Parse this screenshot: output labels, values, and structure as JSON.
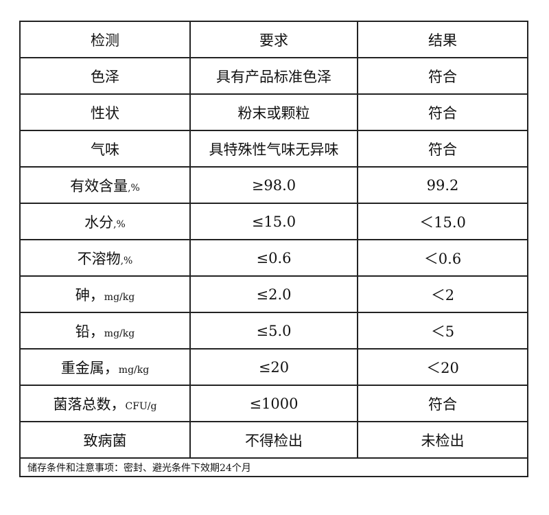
{
  "header": [
    "检测",
    "要求",
    "结果"
  ],
  "rows": [
    {
      "item": "色泽",
      "unit": "",
      "requirement": "具有产品标准色泽",
      "result": "符合"
    },
    {
      "item": "性状",
      "unit": "",
      "requirement": "粉末或颗粒",
      "result": "符合"
    },
    {
      "item": "气味",
      "unit": "",
      "requirement": "具特殊性气味无异味",
      "result": "符合"
    },
    {
      "item": "有效含量",
      "unit": ",%",
      "requirement": "≥98.0",
      "result": "99.2"
    },
    {
      "item": "水分",
      "unit": ",%",
      "requirement": "≤15.0",
      "result": "＜15.0"
    },
    {
      "item": "不溶物",
      "unit": ",%",
      "requirement": "≤0.6",
      "result": "＜0.6"
    },
    {
      "item": "砷，",
      "unit": "mg/kg",
      "requirement": "≤2.0",
      "result": "＜2"
    },
    {
      "item": "铅，",
      "unit": "mg/kg",
      "requirement": "≤5.0",
      "result": "＜5"
    },
    {
      "item": "重金属，",
      "unit": "mg/kg",
      "requirement": "≤20",
      "result": "＜20"
    },
    {
      "item": "菌落总数，",
      "unit": "CFU/g",
      "requirement": "≤1000",
      "result": "符合"
    },
    {
      "item": "致病菌",
      "unit": "",
      "requirement": "不得检出",
      "result": "未检出"
    }
  ],
  "footer": "储存条件和注意事项：密封、避光条件下效期24个月"
}
